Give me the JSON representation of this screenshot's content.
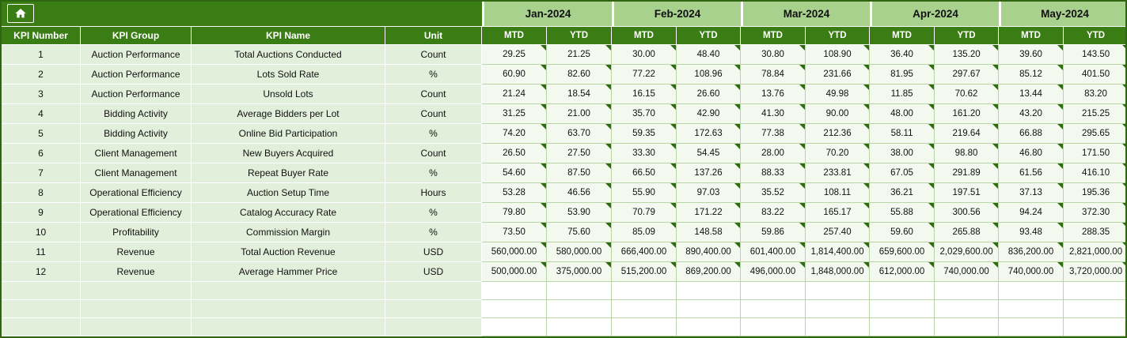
{
  "app": {
    "title": "KPI Tracker Spreadsheet",
    "colors": {
      "header_green": "#3A7D15",
      "month_green": "#A9D18E",
      "row_green": "#E2EFDA",
      "value_bg": "#F3F9EF",
      "grid_green": "#B9D4A6",
      "indicator_green": "#2F6B10",
      "outer_border": "#2F6410"
    },
    "icons": {
      "home": "home-icon"
    }
  },
  "header": {
    "left_columns": [
      "KPI Number",
      "KPI Group",
      "KPI Name",
      "Unit"
    ],
    "months": [
      "Jan-2024",
      "Feb-2024",
      "Mar-2024",
      "Apr-2024",
      "May-2024"
    ],
    "sub_headers": [
      "MTD",
      "YTD"
    ]
  },
  "table": {
    "empty_rows": 3,
    "rows": [
      {
        "num": "1",
        "group": "Auction Performance",
        "name": "Total Auctions Conducted",
        "unit": "Count",
        "values": [
          "29.25",
          "21.25",
          "30.00",
          "48.40",
          "30.80",
          "108.90",
          "36.40",
          "135.20",
          "39.60",
          "143.50"
        ]
      },
      {
        "num": "2",
        "group": "Auction Performance",
        "name": "Lots Sold Rate",
        "unit": "%",
        "values": [
          "60.90",
          "82.60",
          "77.22",
          "108.96",
          "78.84",
          "231.66",
          "81.95",
          "297.67",
          "85.12",
          "401.50"
        ]
      },
      {
        "num": "3",
        "group": "Auction Performance",
        "name": "Unsold Lots",
        "unit": "Count",
        "values": [
          "21.24",
          "18.54",
          "16.15",
          "26.60",
          "13.76",
          "49.98",
          "11.85",
          "70.62",
          "13.44",
          "83.20"
        ]
      },
      {
        "num": "4",
        "group": "Bidding Activity",
        "name": "Average Bidders per Lot",
        "unit": "Count",
        "values": [
          "31.25",
          "21.00",
          "35.70",
          "42.90",
          "41.30",
          "90.00",
          "48.00",
          "161.20",
          "43.20",
          "215.25"
        ]
      },
      {
        "num": "5",
        "group": "Bidding Activity",
        "name": "Online Bid Participation",
        "unit": "%",
        "values": [
          "74.20",
          "63.70",
          "59.35",
          "172.63",
          "77.38",
          "212.36",
          "58.11",
          "219.64",
          "66.88",
          "295.65"
        ]
      },
      {
        "num": "6",
        "group": "Client Management",
        "name": "New Buyers Acquired",
        "unit": "Count",
        "values": [
          "26.50",
          "27.50",
          "33.30",
          "54.45",
          "28.00",
          "70.20",
          "38.00",
          "98.80",
          "46.80",
          "171.50"
        ]
      },
      {
        "num": "7",
        "group": "Client Management",
        "name": "Repeat Buyer Rate",
        "unit": "%",
        "values": [
          "54.60",
          "87.50",
          "66.50",
          "137.26",
          "88.33",
          "233.81",
          "67.05",
          "291.89",
          "61.56",
          "416.10"
        ]
      },
      {
        "num": "8",
        "group": "Operational Efficiency",
        "name": "Auction Setup Time",
        "unit": "Hours",
        "values": [
          "53.28",
          "46.56",
          "55.90",
          "97.03",
          "35.52",
          "108.11",
          "36.21",
          "197.51",
          "37.13",
          "195.36"
        ]
      },
      {
        "num": "9",
        "group": "Operational Efficiency",
        "name": "Catalog Accuracy Rate",
        "unit": "%",
        "values": [
          "79.80",
          "53.90",
          "70.79",
          "171.22",
          "83.22",
          "165.17",
          "55.88",
          "300.56",
          "94.24",
          "372.30"
        ]
      },
      {
        "num": "10",
        "group": "Profitability",
        "name": "Commission Margin",
        "unit": "%",
        "values": [
          "73.50",
          "75.60",
          "85.09",
          "148.58",
          "59.86",
          "257.40",
          "59.60",
          "265.88",
          "93.48",
          "288.35"
        ]
      },
      {
        "num": "11",
        "group": "Revenue",
        "name": "Total Auction Revenue",
        "unit": "USD",
        "values": [
          "560,000.00",
          "580,000.00",
          "666,400.00",
          "890,400.00",
          "601,400.00",
          "1,814,400.00",
          "659,600.00",
          "2,029,600.00",
          "836,200.00",
          "2,821,000.00"
        ]
      },
      {
        "num": "12",
        "group": "Revenue",
        "name": "Average Hammer Price",
        "unit": "USD",
        "values": [
          "500,000.00",
          "375,000.00",
          "515,200.00",
          "869,200.00",
          "496,000.00",
          "1,848,000.00",
          "612,000.00",
          "740,000.00",
          "740,000.00",
          "3,720,000.00"
        ]
      }
    ]
  }
}
